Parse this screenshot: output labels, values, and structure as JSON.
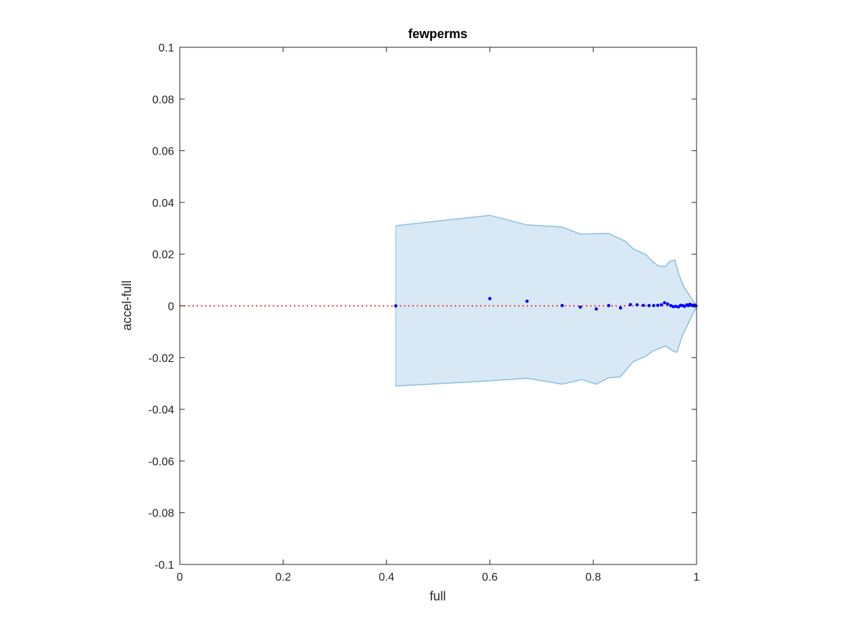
{
  "chart_data": {
    "type": "scatter",
    "title": "fewperms",
    "xlabel": "full",
    "ylabel": "accel-full",
    "xlim": [
      0,
      1
    ],
    "ylim": [
      -0.1,
      0.1
    ],
    "xticks": [
      {
        "value": 0,
        "label": "0"
      },
      {
        "value": 0.2,
        "label": "0.2"
      },
      {
        "value": 0.4,
        "label": "0.4"
      },
      {
        "value": 0.6,
        "label": "0.6"
      },
      {
        "value": 0.8,
        "label": "0.8"
      },
      {
        "value": 1,
        "label": "1"
      }
    ],
    "yticks": [
      {
        "value": -0.1,
        "label": "-0.1"
      },
      {
        "value": -0.08,
        "label": "-0.08"
      },
      {
        "value": -0.06,
        "label": "-0.06"
      },
      {
        "value": -0.04,
        "label": "-0.04"
      },
      {
        "value": -0.02,
        "label": "-0.02"
      },
      {
        "value": 0,
        "label": "0"
      },
      {
        "value": 0.02,
        "label": "0.02"
      },
      {
        "value": 0.04,
        "label": "0.04"
      },
      {
        "value": 0.06,
        "label": "0.06"
      },
      {
        "value": 0.08,
        "label": "0.08"
      },
      {
        "value": 0.1,
        "label": "0.1"
      }
    ],
    "grid": false,
    "reference_line": {
      "y": 0,
      "style": "dotted",
      "color": "#ff0000"
    },
    "band": {
      "upper": [
        [
          0.418,
          0.031
        ],
        [
          0.6,
          0.035
        ],
        [
          0.672,
          0.0313
        ],
        [
          0.74,
          0.0305
        ],
        [
          0.775,
          0.0278
        ],
        [
          0.83,
          0.028
        ],
        [
          0.862,
          0.025
        ],
        [
          0.878,
          0.022
        ],
        [
          0.902,
          0.0198
        ],
        [
          0.915,
          0.0172
        ],
        [
          0.925,
          0.0155
        ],
        [
          0.94,
          0.0152
        ],
        [
          0.948,
          0.0172
        ],
        [
          0.958,
          0.0178
        ],
        [
          0.966,
          0.012
        ],
        [
          0.975,
          0.0075
        ],
        [
          0.985,
          0.0045
        ],
        [
          0.993,
          0.002
        ],
        [
          1.0,
          0.0005
        ]
      ],
      "lower": [
        [
          0.418,
          -0.031
        ],
        [
          0.6,
          -0.029
        ],
        [
          0.672,
          -0.028
        ],
        [
          0.74,
          -0.0303
        ],
        [
          0.778,
          -0.0285
        ],
        [
          0.806,
          -0.0303
        ],
        [
          0.83,
          -0.0278
        ],
        [
          0.852,
          -0.0275
        ],
        [
          0.878,
          -0.0215
        ],
        [
          0.902,
          -0.0195
        ],
        [
          0.915,
          -0.0175
        ],
        [
          0.928,
          -0.0165
        ],
        [
          0.94,
          -0.0155
        ],
        [
          0.952,
          -0.0172
        ],
        [
          0.962,
          -0.018
        ],
        [
          0.972,
          -0.0118
        ],
        [
          0.982,
          -0.0075
        ],
        [
          0.992,
          -0.0035
        ],
        [
          1.0,
          -0.0005
        ]
      ],
      "color": "#d9e8f5",
      "edge_color": "#8bbfde"
    },
    "series": [
      {
        "color": "#0000ff",
        "points": [
          [
            0.418,
            0.0
          ],
          [
            0.6,
            0.0028
          ],
          [
            0.672,
            0.0018
          ],
          [
            0.74,
            0.0001
          ],
          [
            0.775,
            -0.0005
          ],
          [
            0.806,
            -0.0012
          ],
          [
            0.83,
            0.0001
          ],
          [
            0.853,
            -0.0008
          ],
          [
            0.872,
            0.0005
          ],
          [
            0.885,
            0.0004
          ],
          [
            0.897,
            0.0002
          ],
          [
            0.908,
            0.0001
          ],
          [
            0.917,
            0.0001
          ],
          [
            0.925,
            0.0002
          ],
          [
            0.932,
            0.0004
          ],
          [
            0.938,
            0.0012
          ],
          [
            0.944,
            0.0007
          ],
          [
            0.95,
            0.0001
          ],
          [
            0.955,
            -0.0003
          ],
          [
            0.96,
            -0.0002
          ],
          [
            0.965,
            -0.0004
          ],
          [
            0.969,
            0.0002
          ],
          [
            0.973,
            0.0001
          ],
          [
            0.977,
            -0.0002
          ],
          [
            0.981,
            0.0004
          ],
          [
            0.984,
            0.0001
          ],
          [
            0.987,
            0.0006
          ],
          [
            0.99,
            0.0002
          ],
          [
            0.993,
            0.0003
          ],
          [
            0.995,
            0.0
          ],
          [
            0.997,
            0.0002
          ],
          [
            0.999,
            0.0
          ]
        ]
      }
    ]
  }
}
